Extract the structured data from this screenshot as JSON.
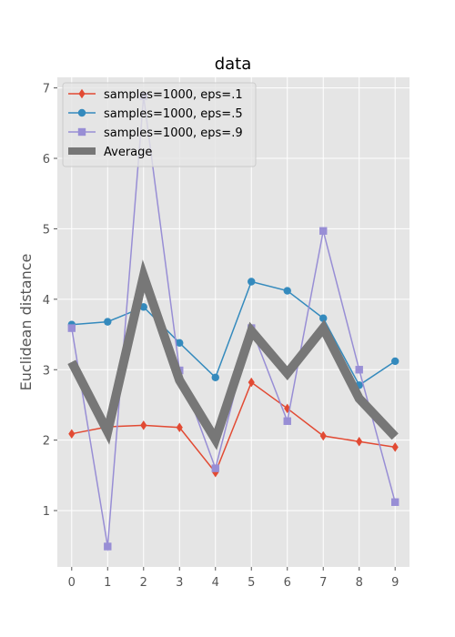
{
  "chart_data": {
    "type": "line",
    "title": "data",
    "xlabel": "",
    "ylabel": "Euclidean distance",
    "x": [
      0,
      1,
      2,
      3,
      4,
      5,
      6,
      7,
      8,
      9
    ],
    "xlim": [
      -0.4,
      9.4
    ],
    "ylim": [
      0.2,
      7.15
    ],
    "xticks": [
      "0",
      "1",
      "2",
      "3",
      "4",
      "5",
      "6",
      "7",
      "8",
      "9"
    ],
    "yticks": [
      "1",
      "2",
      "3",
      "4",
      "5",
      "6",
      "7"
    ],
    "grid": true,
    "legend_position": "upper-left",
    "series": [
      {
        "name": "samples=1000, eps=.1",
        "color": "#E24A33",
        "marker": "diamond",
        "values": [
          2.09,
          2.19,
          2.21,
          2.18,
          1.54,
          2.82,
          2.45,
          2.06,
          1.98,
          1.9
        ]
      },
      {
        "name": "samples=1000, eps=.5",
        "color": "#348ABD",
        "marker": "circle",
        "values": [
          3.64,
          3.68,
          3.89,
          3.38,
          2.89,
          4.25,
          4.12,
          3.73,
          2.78,
          3.12
        ]
      },
      {
        "name": "samples=1000, eps=.9",
        "color": "#988ED5",
        "marker": "square",
        "values": [
          3.59,
          0.49,
          6.88,
          2.99,
          1.6,
          3.59,
          2.27,
          4.97,
          3.0,
          1.12
        ]
      },
      {
        "name": "Average",
        "color": "#777777",
        "marker": "none",
        "thick": true,
        "values": [
          3.11,
          2.12,
          4.33,
          2.85,
          2.01,
          3.55,
          2.95,
          3.59,
          2.59,
          2.05
        ]
      }
    ]
  }
}
